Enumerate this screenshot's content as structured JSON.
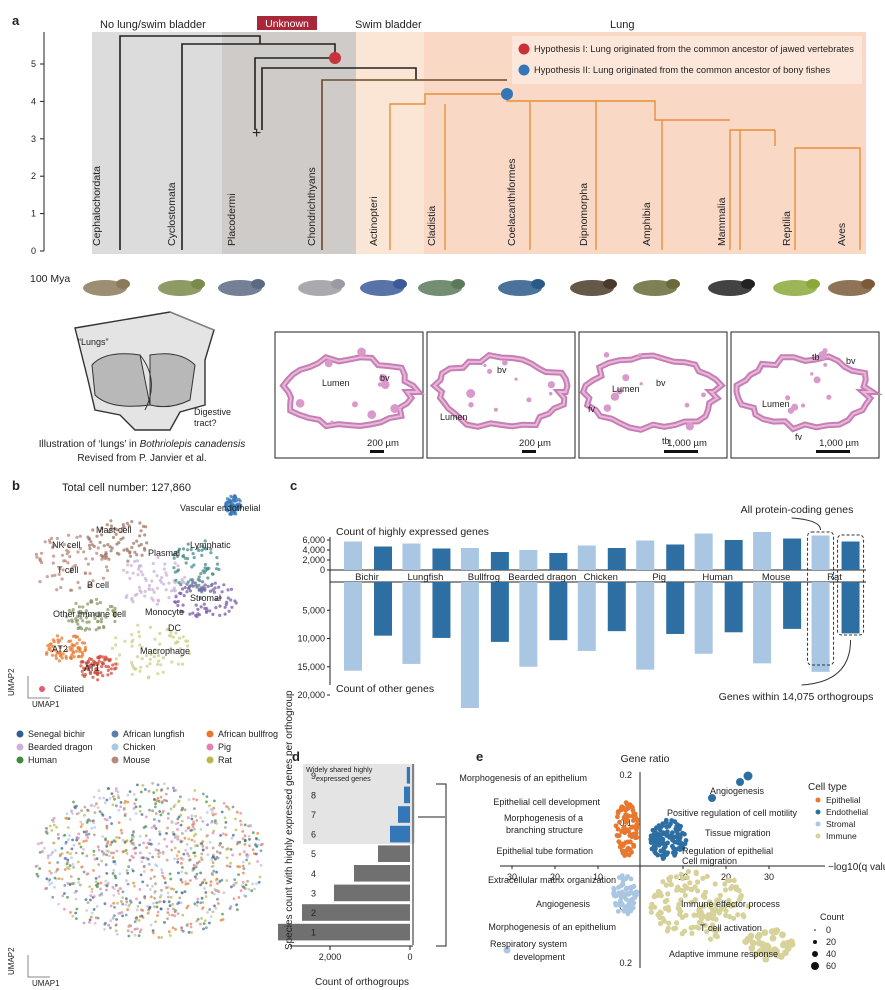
{
  "panel_a": {
    "label": "a",
    "header": {
      "no_lung": "No lung/swim bladder",
      "unknown": "Unknown",
      "swim_bladder": "Swim bladder",
      "lung": "Lung"
    },
    "y_ticks": [
      "0",
      "1",
      "2",
      "3",
      "4",
      "5"
    ],
    "legend": {
      "h1": "Hypothesis I: Lung originated from the common ancestor of jawed vertebrates",
      "h2": "Hypothesis II: Lung originated from the common ancestor of bony fishes"
    },
    "taxa": [
      "Cephalochordata",
      "Cyclostomata",
      "Placodermi",
      "Chondrichthyans",
      "Actinopteri",
      "Cladistia",
      "Coelacanthiformes",
      "Dipnomorpha",
      "Amphibia",
      "Mammalia",
      "Reptilia",
      "Aves"
    ],
    "extinct_mark": "+",
    "time_label": "100 Mya",
    "inset": {
      "lungs_label": "“Lungs”",
      "digestive": "Digestive",
      "tract": "tract?",
      "caption_prefix": "Illustration of ‘lungs’ in ",
      "caption_species": "Bothriolepis canadensis",
      "caption_line2": "Revised from P. Janvier et al."
    },
    "histology": [
      {
        "labels": [
          "Lumen",
          "bv"
        ],
        "scale": "200 µm"
      },
      {
        "labels": [
          "bv",
          "Lumen"
        ],
        "scale": "200 µm"
      },
      {
        "labels": [
          "Lumen",
          "bv",
          "fv",
          "tb"
        ],
        "scale": "1,000 µm"
      },
      {
        "labels": [
          "tb",
          "bv",
          "Lumen",
          "fv"
        ],
        "scale": "1,000 µm"
      }
    ],
    "colors": {
      "hyp1": "#c8323a",
      "hyp2": "#3477b8",
      "lung_tree": "#e8903a",
      "unknown_bg": "#a8283a"
    }
  },
  "panel_b": {
    "label": "b",
    "total": "Total cell number: 127,860",
    "clusters": [
      "Vascular endothelial",
      "Mast cell",
      "NK cell",
      "Plasmal",
      "Lymphatic",
      "T cell",
      "B cell",
      "Stromal",
      "Monocyte",
      "Other immune cell",
      "DC",
      "Macrophage",
      "AT2",
      "AT1",
      "Ciliated"
    ],
    "axis_y": "UMAP2",
    "axis_x": "UMAP1",
    "species_legend": [
      {
        "name": "Senegal bichir",
        "color": "#2f5f8a"
      },
      {
        "name": "African lungfish",
        "color": "#5a7fa8"
      },
      {
        "name": "African bullfrog",
        "color": "#e8782e"
      },
      {
        "name": "Bearded dragon",
        "color": "#c9b3d8"
      },
      {
        "name": "Chicken",
        "color": "#a9c8e4"
      },
      {
        "name": "Pig",
        "color": "#e47fb0"
      },
      {
        "name": "Human",
        "color": "#3c8c3c"
      },
      {
        "name": "Mouse",
        "color": "#b88a7a"
      },
      {
        "name": "Rat",
        "color": "#b8b84a"
      }
    ]
  },
  "panel_c": {
    "label": "c",
    "title_top": "Count of highly expressed genes",
    "title_bottom": "Count of other genes",
    "all_label": "All protein-coding genes",
    "ortho_label": "Genes within 14,075 orthogroups",
    "y_ticks_top": [
      "6,000",
      "4,000",
      "2,000",
      "0"
    ],
    "y_ticks_bottom": [
      "5,000",
      "10,000",
      "15,000",
      "20,000"
    ],
    "chart_data": {
      "type": "bar",
      "categories": [
        "Bichir",
        "Lungfish",
        "Bullfrog",
        "Bearded dragon",
        "Chicken",
        "Pig",
        "Human",
        "Mouse",
        "Rat"
      ],
      "series": [
        {
          "name": "All protein-coding genes (highly expressed)",
          "values": [
            5700,
            5300,
            4400,
            4000,
            4900,
            5900,
            7300,
            7600,
            6900
          ]
        },
        {
          "name": "Genes within orthogroups (highly expressed)",
          "values": [
            4700,
            4300,
            3600,
            3400,
            4400,
            5100,
            6000,
            6300,
            5700
          ]
        },
        {
          "name": "All protein-coding genes (other)",
          "values": [
            15700,
            14500,
            22300,
            15000,
            12200,
            15500,
            12700,
            14400,
            15900
          ]
        },
        {
          "name": "Genes within orthogroups (other)",
          "values": [
            9500,
            9900,
            10600,
            10300,
            8700,
            9200,
            8900,
            8300,
            9100
          ]
        }
      ],
      "colors": {
        "all": "#a9c6e3",
        "ortho": "#2e6fa3"
      }
    }
  },
  "panel_d": {
    "label": "d",
    "ylabel": "Species count with highly expressed genes per orthogroup",
    "xlabel": "Count of orthogroups",
    "box_label": "Widely shared highly expressed genes",
    "x_ticks": [
      "2,000",
      "0"
    ],
    "chart_data": {
      "type": "bar",
      "categories": [
        "1",
        "2",
        "3",
        "4",
        "5",
        "6",
        "7",
        "8",
        "9"
      ],
      "values": [
        3300,
        2700,
        1900,
        1400,
        800,
        500,
        300,
        150,
        80
      ],
      "highlight_from": "6",
      "colors": {
        "gray": "#707070",
        "blue": "#3477b8"
      }
    }
  },
  "panel_e": {
    "label": "e",
    "title": "Gene ratio",
    "xlabel": "−log10(q value)",
    "y_ticks_top": [
      "0.2",
      "0.1"
    ],
    "y_ticks_bottom": [
      "0.1",
      "0.2"
    ],
    "x_ticks": [
      "30",
      "20",
      "10",
      "10",
      "20",
      "30"
    ],
    "terms_left_top": [
      "Morphogenesis of an epithelium",
      "Epithelial cell development",
      "Morphogenesis of a",
      "branching structure",
      "Epithelial tube formation"
    ],
    "terms_left_bottom": [
      "Extracellular matrix organization",
      "Angiogenesis",
      "Morphogenesis of an epithelium",
      "Respiratory system",
      "development"
    ],
    "terms_right_top": [
      "Angiogenesis",
      "Positive regulation of cell motility",
      "Tissue migration",
      "Regulation of epithelial",
      "Cell migration"
    ],
    "terms_right_bottom": [
      "Immune effector process",
      "T cell activation",
      "Adaptive immune response"
    ],
    "cell_type_title": "Cell type",
    "cell_types": [
      {
        "name": "Epithelial",
        "color": "#e8782e"
      },
      {
        "name": "Endothelial",
        "color": "#2e6fa3"
      },
      {
        "name": "Stromal",
        "color": "#a9c6e3"
      },
      {
        "name": "Immune",
        "color": "#d6d29a"
      }
    ],
    "count_title": "Count",
    "count_values": [
      "0",
      "20",
      "40",
      "60"
    ]
  }
}
